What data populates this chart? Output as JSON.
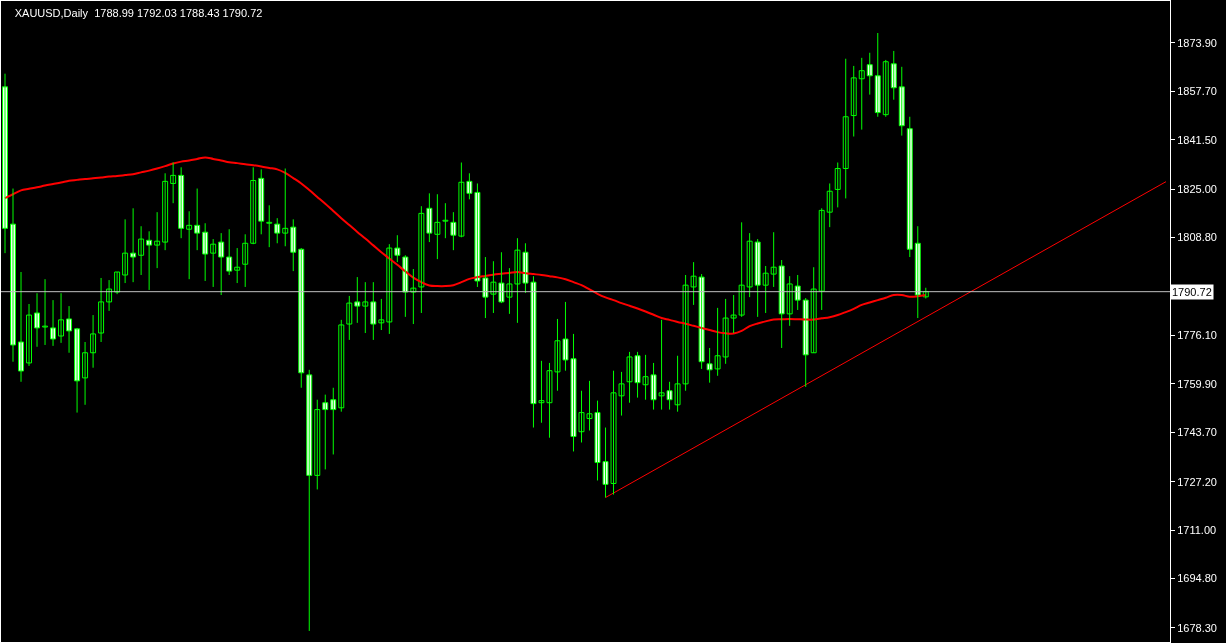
{
  "chart_data": {
    "type": "candlestick",
    "title": "XAUUSD,Daily  1788.99 1792.03 1788.43 1790.72",
    "color": "#00ff00",
    "categories": [
      null,
      null,
      null,
      null,
      null,
      null,
      null,
      null,
      null,
      null,
      null,
      null,
      null,
      null,
      null,
      null,
      null,
      null,
      null,
      null,
      null,
      null,
      null,
      null,
      null,
      null,
      null,
      null,
      null,
      null,
      null,
      null,
      null,
      null,
      null,
      null,
      null,
      null,
      null,
      null,
      null,
      null,
      null,
      null,
      null,
      null,
      null,
      null,
      null,
      null,
      null,
      null,
      null,
      null,
      null,
      null,
      null,
      null,
      null,
      null,
      null,
      null,
      null,
      null,
      null,
      null,
      null,
      null,
      null,
      null,
      null,
      null,
      null,
      null,
      null,
      null,
      null,
      null,
      null,
      null,
      null,
      null,
      null,
      null,
      null,
      null,
      null,
      null,
      null,
      null,
      null,
      null,
      null,
      null,
      null,
      null,
      null,
      null,
      null,
      null,
      null,
      null,
      null,
      null,
      null,
      null,
      null,
      null,
      null,
      null,
      null,
      null,
      null,
      null,
      null,
      null,
      null,
      null,
      null,
      null,
      null,
      null,
      null,
      null,
      null,
      null,
      null,
      null,
      null,
      null,
      null,
      null,
      null,
      null,
      null,
      null,
      null,
      null,
      null,
      null,
      null,
      null,
      null,
      null,
      null,
      null
    ],
    "ohlc": [
      [
        1859.2,
        1863.6,
        1803.6,
        1811.9
      ],
      [
        1813.3,
        1825.2,
        1767.3,
        1772.9
      ],
      [
        1773.9,
        1797.3,
        1760.6,
        1764.2
      ],
      [
        1766.9,
        1786.6,
        1765.9,
        1782.9
      ],
      [
        1783.6,
        1790.2,
        1772.3,
        1778.6
      ],
      [
        1778.9,
        1794.9,
        1772.9,
        1779.2
      ],
      [
        1778.6,
        1787.9,
        1772.6,
        1774.9
      ],
      [
        1775.9,
        1790.2,
        1773.6,
        1781.3
      ],
      [
        1781.6,
        1785.9,
        1770.3,
        1777.6
      ],
      [
        1778.3,
        1778.6,
        1750.3,
        1760.9
      ],
      [
        1761.9,
        1773.9,
        1752.9,
        1770.3
      ],
      [
        1770.3,
        1782.9,
        1765.3,
        1776.6
      ],
      [
        1776.9,
        1795.3,
        1773.9,
        1787.3
      ],
      [
        1787.3,
        1794.6,
        1784.3,
        1791.6
      ],
      [
        1790.6,
        1797.3,
        1789.9,
        1797.3
      ],
      [
        1796.3,
        1814.9,
        1793.6,
        1803.6
      ],
      [
        1803.6,
        1818.6,
        1793.9,
        1802.3
      ],
      [
        1802.9,
        1812.6,
        1796.3,
        1808.3
      ],
      [
        1807.9,
        1810.9,
        1791.3,
        1806.3
      ],
      [
        1806.3,
        1817.3,
        1798.6,
        1807.6
      ],
      [
        1807.3,
        1830.3,
        1804.6,
        1827.6
      ],
      [
        1826.9,
        1833.9,
        1820.3,
        1829.6
      ],
      [
        1829.6,
        1832.3,
        1808.6,
        1811.9
      ],
      [
        1811.6,
        1817.6,
        1794.9,
        1812.9
      ],
      [
        1812.9,
        1825.2,
        1804.6,
        1810.3
      ],
      [
        1810.6,
        1813.6,
        1794.3,
        1803.3
      ],
      [
        1803.6,
        1808.3,
        1792.3,
        1806.6
      ],
      [
        1807.3,
        1810.3,
        1789.6,
        1802.3
      ],
      [
        1802.3,
        1811.6,
        1796.3,
        1797.6
      ],
      [
        1797.9,
        1805.3,
        1793.6,
        1798.9
      ],
      [
        1799.9,
        1809.9,
        1792.3,
        1806.9
      ],
      [
        1806.9,
        1832.3,
        1806.6,
        1827.9
      ],
      [
        1828.6,
        1831.6,
        1809.9,
        1814.3
      ],
      [
        1813.6,
        1819.6,
        1805.6,
        1813.9
      ],
      [
        1813.3,
        1815.3,
        1806.9,
        1810.3
      ],
      [
        1810.3,
        1831.9,
        1805.9,
        1811.9
      ],
      [
        1812.3,
        1814.9,
        1797.6,
        1803.9
      ],
      [
        1804.9,
        1805.3,
        1758.6,
        1763.6
      ],
      [
        1762.9,
        1764.6,
        1677.3,
        1729.3
      ],
      [
        1729.3,
        1754.6,
        1724.6,
        1751.3
      ],
      [
        1753.6,
        1756.3,
        1731.3,
        1751.3
      ],
      [
        1754.6,
        1758.6,
        1736.3,
        1751.3
      ],
      [
        1751.9,
        1781.3,
        1750.6,
        1779.6
      ],
      [
        1779.9,
        1789.3,
        1774.6,
        1786.9
      ],
      [
        1787.3,
        1795.6,
        1780.3,
        1785.9
      ],
      [
        1785.9,
        1793.9,
        1776.9,
        1787.3
      ],
      [
        1787.3,
        1793.9,
        1774.6,
        1779.9
      ],
      [
        1780.3,
        1788.3,
        1777.9,
        1781.3
      ],
      [
        1780.6,
        1806.6,
        1776.6,
        1805.3
      ],
      [
        1805.3,
        1809.6,
        1800.6,
        1802.9
      ],
      [
        1802.3,
        1802.9,
        1782.3,
        1790.6
      ],
      [
        1790.6,
        1798.3,
        1779.9,
        1791.9
      ],
      [
        1792.3,
        1819.3,
        1783.6,
        1816.9
      ],
      [
        1818.6,
        1823.6,
        1807.3,
        1810.3
      ],
      [
        1809.9,
        1823.3,
        1801.6,
        1813.9
      ],
      [
        1814.3,
        1820.3,
        1808.6,
        1814.6
      ],
      [
        1813.9,
        1817.3,
        1804.6,
        1809.6
      ],
      [
        1809.3,
        1833.9,
        1808.9,
        1827.3
      ],
      [
        1827.6,
        1830.3,
        1821.6,
        1823.6
      ],
      [
        1823.9,
        1826.9,
        1792.3,
        1794.3
      ],
      [
        1795.3,
        1802.3,
        1781.9,
        1788.9
      ],
      [
        1789.9,
        1800.9,
        1783.6,
        1793.9
      ],
      [
        1793.6,
        1803.9,
        1786.9,
        1787.3
      ],
      [
        1788.9,
        1798.6,
        1783.3,
        1793.3
      ],
      [
        1793.3,
        1808.6,
        1780.3,
        1804.6
      ],
      [
        1803.9,
        1806.9,
        1790.3,
        1793.6
      ],
      [
        1793.9,
        1795.9,
        1745.3,
        1753.3
      ],
      [
        1753.6,
        1767.6,
        1746.9,
        1754.3
      ],
      [
        1753.6,
        1766.9,
        1741.9,
        1764.3
      ],
      [
        1763.9,
        1781.6,
        1757.6,
        1774.3
      ],
      [
        1774.9,
        1787.3,
        1764.3,
        1767.9
      ],
      [
        1768.3,
        1776.6,
        1737.3,
        1742.3
      ],
      [
        1743.9,
        1757.6,
        1740.3,
        1750.3
      ],
      [
        1748.3,
        1760.9,
        1744.3,
        1749.9
      ],
      [
        1750.3,
        1754.3,
        1727.6,
        1733.6
      ],
      [
        1733.9,
        1745.3,
        1721.9,
        1726.3
      ],
      [
        1726.6,
        1764.3,
        1722.9,
        1756.9
      ],
      [
        1755.9,
        1763.9,
        1749.3,
        1759.9
      ],
      [
        1760.6,
        1770.6,
        1753.6,
        1768.9
      ],
      [
        1769.3,
        1770.6,
        1755.3,
        1760.3
      ],
      [
        1759.6,
        1769.6,
        1754.6,
        1762.3
      ],
      [
        1762.9,
        1766.9,
        1751.3,
        1754.6
      ],
      [
        1755.9,
        1781.3,
        1751.3,
        1756.9
      ],
      [
        1757.6,
        1760.6,
        1751.3,
        1754.6
      ],
      [
        1752.9,
        1769.3,
        1750.6,
        1759.9
      ],
      [
        1759.9,
        1796.3,
        1757.6,
        1792.9
      ],
      [
        1792.3,
        1800.6,
        1786.3,
        1795.9
      ],
      [
        1795.6,
        1796.6,
        1764.9,
        1767.3
      ],
      [
        1766.6,
        1771.9,
        1760.3,
        1764.6
      ],
      [
        1764.9,
        1785.3,
        1762.6,
        1769.3
      ],
      [
        1768.9,
        1788.3,
        1766.6,
        1781.9
      ],
      [
        1781.9,
        1789.6,
        1776.9,
        1782.9
      ],
      [
        1782.9,
        1813.9,
        1782.3,
        1792.9
      ],
      [
        1792.3,
        1810.3,
        1788.9,
        1807.6
      ],
      [
        1807.3,
        1808.3,
        1782.3,
        1792.9
      ],
      [
        1792.9,
        1799.3,
        1783.6,
        1796.9
      ],
      [
        1796.6,
        1810.6,
        1792.3,
        1798.9
      ],
      [
        1799.3,
        1801.3,
        1771.9,
        1783.3
      ],
      [
        1783.3,
        1795.9,
        1779.3,
        1793.3
      ],
      [
        1792.6,
        1796.3,
        1784.6,
        1787.9
      ],
      [
        1787.9,
        1788.6,
        1758.9,
        1769.6
      ],
      [
        1770.3,
        1798.9,
        1770.3,
        1791.6
      ],
      [
        1790.9,
        1818.6,
        1784.6,
        1817.9
      ],
      [
        1817.3,
        1826.9,
        1812.3,
        1824.3
      ],
      [
        1824.9,
        1833.9,
        1818.9,
        1831.9
      ],
      [
        1831.9,
        1868.6,
        1821.9,
        1849.2
      ],
      [
        1849.6,
        1866.2,
        1842.6,
        1862.2
      ],
      [
        1861.9,
        1868.9,
        1844.9,
        1864.6
      ],
      [
        1866.6,
        1870.6,
        1856.6,
        1862.9
      ],
      [
        1862.9,
        1877.2,
        1849.2,
        1850.6
      ],
      [
        1849.9,
        1868.2,
        1849.2,
        1867.6
      ],
      [
        1866.9,
        1871.2,
        1854.9,
        1858.9
      ],
      [
        1859.2,
        1865.9,
        1842.9,
        1846.2
      ],
      [
        1845.2,
        1849.2,
        1802.3,
        1804.9
      ],
      [
        1806.9,
        1812.6,
        1781.9,
        1789.6
      ],
      [
        1788.99,
        1792.03,
        1788.43,
        1790.72
      ],
      null,
      null,
      null,
      null,
      null,
      null,
      null,
      null,
      null,
      null,
      null,
      null,
      null,
      null,
      null,
      null,
      null,
      null,
      null,
      null,
      null,
      null,
      null,
      null,
      null,
      null,
      null,
      null,
      null,
      null
    ],
    "series": [
      {
        "type": "line",
        "color": "#ff0000",
        "values": [
          1822.0,
          1823.3,
          1824.6,
          1825.1,
          1825.6,
          1826.2,
          1826.7,
          1827.2,
          1827.8,
          1828.1,
          1828.4,
          1828.6,
          1828.9,
          1829.2,
          1829.4,
          1829.7,
          1830.0,
          1830.6,
          1831.2,
          1831.9,
          1832.7,
          1833.6,
          1834.2,
          1834.6,
          1835.1,
          1835.6,
          1835.1,
          1834.6,
          1834.0,
          1833.7,
          1833.3,
          1833.0,
          1832.6,
          1832.1,
          1831.6,
          1830.4,
          1828.7,
          1826.9,
          1824.7,
          1822.4,
          1820.1,
          1817.7,
          1815.3,
          1813.0,
          1810.7,
          1808.5,
          1806.2,
          1803.9,
          1801.8,
          1799.7,
          1797.5,
          1795.4,
          1793.9,
          1792.8,
          1792.6,
          1792.6,
          1792.9,
          1793.9,
          1795.0,
          1795.6,
          1796.0,
          1796.4,
          1796.7,
          1797.0,
          1797.3,
          1796.9,
          1796.6,
          1796.3,
          1795.9,
          1795.5,
          1794.9,
          1793.9,
          1792.9,
          1791.5,
          1790.0,
          1788.8,
          1787.9,
          1786.9,
          1786.0,
          1785.1,
          1784.1,
          1783.0,
          1781.9,
          1781.3,
          1780.6,
          1780.0,
          1779.3,
          1778.6,
          1777.9,
          1777.2,
          1776.8,
          1776.7,
          1777.6,
          1779.2,
          1780.1,
          1780.8,
          1781.4,
          1781.5,
          1781.6,
          1781.5,
          1781.4,
          1781.4,
          1781.8,
          1782.2,
          1782.9,
          1783.9,
          1785.0,
          1786.3,
          1787.1,
          1787.9,
          1788.7,
          1789.6,
          1789.6,
          1789.0,
          1789.2,
          1789.6,
          null,
          null,
          null,
          null,
          null,
          null,
          null,
          null,
          null,
          null,
          null,
          null,
          null,
          null,
          null,
          null,
          null,
          null,
          null,
          null,
          null,
          null,
          null,
          null,
          null,
          null,
          null,
          null,
          null,
          null
        ]
      },
      {
        "type": "line",
        "color": "#ff0000",
        "values": [
          null,
          null,
          null,
          null,
          null,
          null,
          null,
          null,
          null,
          null,
          null,
          null,
          null,
          null,
          null,
          null,
          null,
          null,
          null,
          null,
          null,
          null,
          null,
          null,
          null,
          null,
          null,
          null,
          null,
          null,
          null,
          null,
          null,
          null,
          null,
          null,
          null,
          null,
          null,
          null,
          null,
          null,
          null,
          null,
          null,
          null,
          null,
          null,
          null,
          null,
          null,
          null,
          null,
          null,
          null,
          null,
          null,
          null,
          null,
          null,
          null,
          null,
          null,
          null,
          null,
          null,
          null,
          null,
          null,
          null,
          null,
          null,
          null,
          null,
          null,
          1721.9,
          null,
          null,
          null,
          null,
          null,
          null,
          null,
          null,
          null,
          null,
          null,
          null,
          null,
          null,
          null,
          null,
          null,
          null,
          null,
          null,
          null,
          null,
          null,
          null,
          null,
          null,
          null,
          null,
          null,
          null,
          null,
          null,
          null,
          null,
          null,
          null,
          null,
          null,
          null,
          null,
          null,
          null,
          null,
          null,
          null,
          null,
          null,
          null,
          null,
          null,
          null,
          null,
          null,
          null,
          null,
          null,
          null,
          null,
          null,
          null,
          null,
          null,
          null,
          null,
          null,
          null,
          null,
          null,
          null,
          1827.5
        ]
      }
    ],
    "ref_lines": [
      {
        "axis": "y",
        "value": 1790.72,
        "label": "1790.72",
        "color": "#c0c0c0"
      }
    ],
    "ylim": [
      1673.6,
      1887.9
    ],
    "yticks": [
      {
        "value": 1873.9,
        "label": "1873.90"
      },
      {
        "value": 1857.7,
        "label": "1857.70"
      },
      {
        "value": 1841.5,
        "label": "1841.50"
      },
      {
        "value": 1825.0,
        "label": "1825.00"
      },
      {
        "value": 1808.8,
        "label": "1808.80"
      },
      {
        "value": 1776.1,
        "label": "1776.10"
      },
      {
        "value": 1759.9,
        "label": "1759.90"
      },
      {
        "value": 1743.7,
        "label": "1743.70"
      },
      {
        "value": 1727.2,
        "label": "1727.20"
      },
      {
        "value": 1711.0,
        "label": "1711.00"
      },
      {
        "value": 1694.8,
        "label": "1694.80"
      },
      {
        "value": 1678.3,
        "label": "1678.30"
      }
    ],
    "grid": false
  }
}
